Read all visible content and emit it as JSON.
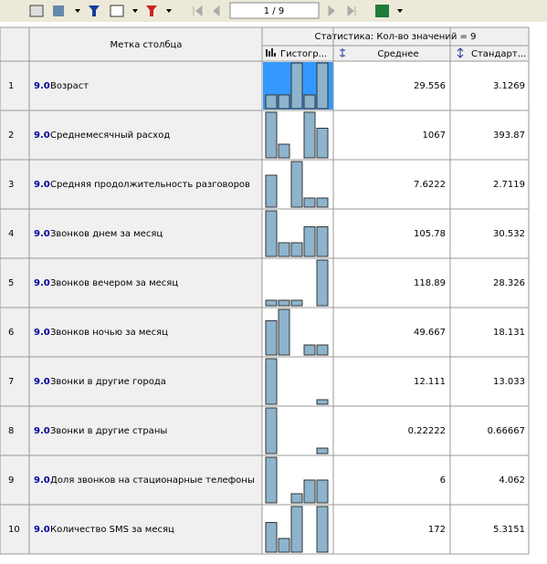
{
  "toolbar": {
    "page": "1 / 9"
  },
  "header": {
    "title": "Метка столбца",
    "group": "Статистика: Кол-во значений = 9",
    "columns": [
      "Гистогр...",
      "Среднее",
      "Стандарт..."
    ]
  },
  "rows": [
    {
      "index": 1,
      "level": "9.0",
      "label": "Возраст",
      "histogram": [
        30,
        30,
        100,
        30,
        100
      ],
      "mean": 29.556,
      "std": 3.1269
    },
    {
      "index": 2,
      "level": "9.0",
      "label": "Среднемесячный расход",
      "histogram": [
        100,
        30,
        0,
        100,
        65
      ],
      "mean": 1067,
      "std": 393.87
    },
    {
      "index": 3,
      "level": "9.0",
      "label": "Средняя продолжительность разговоров",
      "histogram": [
        70,
        0,
        100,
        20,
        20
      ],
      "mean": 7.6222,
      "std": 2.7119
    },
    {
      "index": 4,
      "level": "9.0",
      "label": "Звонков днем за месяц",
      "histogram": [
        100,
        30,
        30,
        65,
        65
      ],
      "mean": 105.78,
      "std": 30.532
    },
    {
      "index": 5,
      "level": "9.0",
      "label": "Звонков вечером за месяц",
      "histogram": [
        12,
        12,
        12,
        0,
        100
      ],
      "mean": 118.89,
      "std": 28.326
    },
    {
      "index": 6,
      "level": "9.0",
      "label": "Звонков ночью за месяц",
      "histogram": [
        75,
        100,
        0,
        22,
        22
      ],
      "mean": 49.667,
      "std": 18.131
    },
    {
      "index": 7,
      "level": "9.0",
      "label": "Звонки в другие города",
      "histogram": [
        100,
        0,
        0,
        0,
        10
      ],
      "mean": 12.111,
      "std": 13.033
    },
    {
      "index": 8,
      "level": "9.0",
      "label": "Звонки в другие страны",
      "histogram": [
        100,
        0,
        0,
        0,
        12
      ],
      "mean": 0.22222,
      "std": 0.66667
    },
    {
      "index": 9,
      "level": "9.0",
      "label": "Доля звонков на стационарные телефоны",
      "histogram": [
        100,
        0,
        20,
        50,
        50
      ],
      "mean": 6,
      "std": 4.062
    },
    {
      "index": 10,
      "level": "9.0",
      "label": "Количество SMS за месяц",
      "histogram": [
        65,
        30,
        100,
        0,
        100
      ],
      "mean": 172,
      "std": 5.3151
    }
  ]
}
